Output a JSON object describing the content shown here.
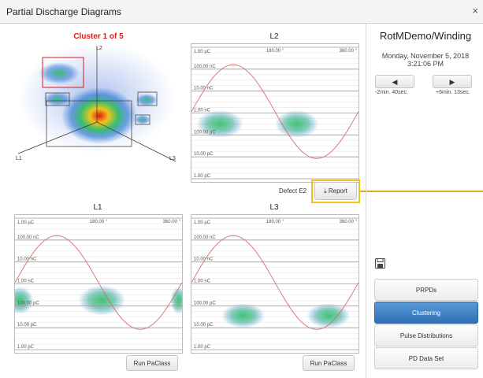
{
  "window": {
    "title": "Partial Discharge Diagrams",
    "close_label": "×"
  },
  "cluster": {
    "title": "Cluster 1 of 5",
    "axis_top": "L2",
    "axis_left": "L1",
    "axis_right": "L3"
  },
  "plots": {
    "l2": {
      "title": "L2",
      "defect_label": "Defect E2",
      "report_label": "Report",
      "report_icon": "download-icon"
    },
    "l1": {
      "title": "L1",
      "run_label": "Run PaClass"
    },
    "l3": {
      "title": "L3",
      "run_label": "Run PaClass"
    },
    "axis": {
      "phase_labels": [
        "180.00 °",
        "360.00 °"
      ],
      "y_labels": [
        "1.00 µC",
        "100.00 nC",
        "10.00 nC",
        "1.00 nC",
        "100.00 pC",
        "10.00 pC",
        "1.00 pC"
      ]
    }
  },
  "side": {
    "title": "RotMDemo/Winding",
    "date": "Monday, November 5, 2018",
    "time": "3:21:06 PM",
    "prev_label": "-2min. 40sec.",
    "next_label": "+6min. 13sec.",
    "save_icon": "floppy-disk-icon",
    "nav": [
      "PRPDs",
      "Clustering",
      "Pulse Distributions",
      "PD Data Set"
    ],
    "active_nav": "Clustering"
  },
  "colors": {
    "accent_blue": "#2f6fb5",
    "highlight": "#f0c31c",
    "cluster_red": "#e01b1b",
    "sine": "#d86a6a"
  }
}
